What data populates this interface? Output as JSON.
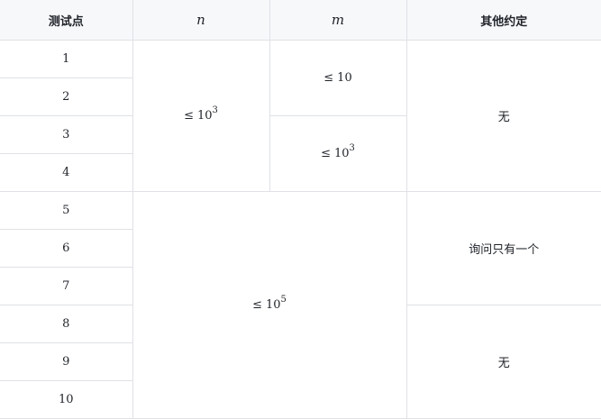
{
  "table": {
    "headers": {
      "case": "测试点",
      "n": "n",
      "m": "m",
      "other": "其他约定"
    },
    "rows": [
      "1",
      "2",
      "3",
      "4",
      "5",
      "6",
      "7",
      "8",
      "9",
      "10"
    ],
    "n_groups": [
      {
        "le": "≤",
        "base": "10",
        "exp": "3"
      },
      {
        "le": "≤",
        "base": "10",
        "exp": "5"
      }
    ],
    "m_groups": [
      {
        "le": "≤",
        "base": "10",
        "exp": ""
      },
      {
        "le": "≤",
        "base": "10",
        "exp": "3"
      }
    ],
    "other_groups": [
      "无",
      "询问只有一个",
      "无"
    ]
  }
}
